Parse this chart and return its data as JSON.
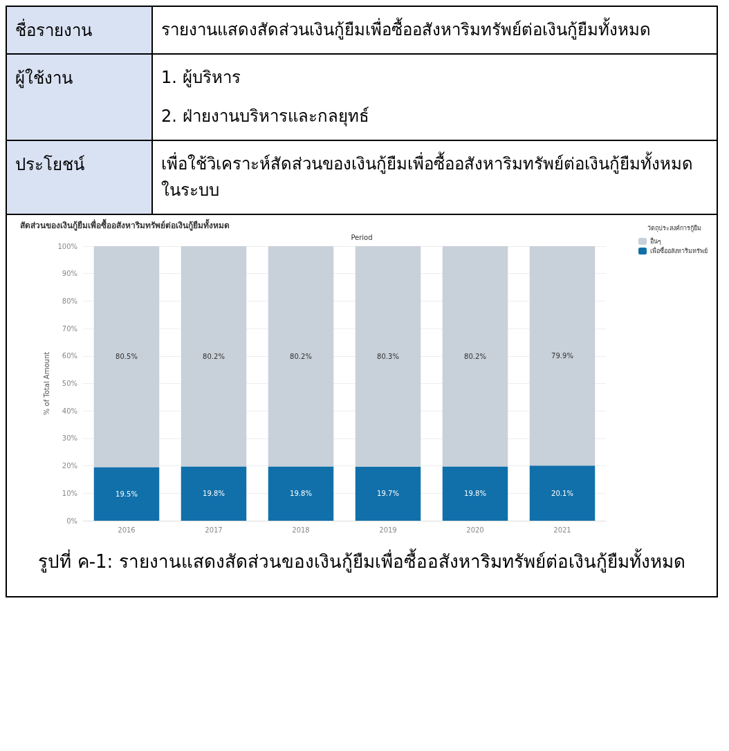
{
  "chart_data": {
    "type": "bar",
    "title": "สัดส่วนของเงินกู้ยืมเพื่อซื้ออสังหาริมทรัพย์ต่อเงินกู้ยืมทั้งหมด",
    "xlabel": "Period",
    "ylabel": "% of Total Amount",
    "legend_title": "วัตถุประสงค์การกู้ยืม",
    "categories": [
      "2016",
      "2017",
      "2018",
      "2019",
      "2020",
      "2021"
    ],
    "stacked": true,
    "series": [
      {
        "name": "เพื่อซื้ออสังหาริมทรัพย์",
        "color": "#1170aa",
        "values": [
          19.5,
          19.8,
          19.8,
          19.7,
          19.8,
          20.1
        ],
        "value_labels": [
          "19.5%",
          "19.8%",
          "19.8%",
          "19.7%",
          "19.8%",
          "20.1%"
        ]
      },
      {
        "name": "อื่นๆ",
        "color": "#c8d0d9",
        "values": [
          80.5,
          80.2,
          80.2,
          80.3,
          80.2,
          79.9
        ],
        "value_labels": [
          "80.5%",
          "80.2%",
          "80.2%",
          "80.3%",
          "80.2%",
          "79.9%"
        ]
      }
    ],
    "ylim": [
      0,
      100
    ],
    "yticks": [
      {
        "value": 0,
        "label": "0%"
      },
      {
        "value": 10,
        "label": "10%"
      },
      {
        "value": 20,
        "label": "20%"
      },
      {
        "value": 30,
        "label": "30%"
      },
      {
        "value": 40,
        "label": "40%"
      },
      {
        "value": 50,
        "label": "50%"
      },
      {
        "value": 60,
        "label": "60%"
      },
      {
        "value": 70,
        "label": "70%"
      },
      {
        "value": 80,
        "label": "80%"
      },
      {
        "value": 90,
        "label": "90%"
      },
      {
        "value": 100,
        "label": "100%"
      }
    ],
    "grid": "y",
    "legend": "top right",
    "annotations": [
      "ชื่อรายงาน",
      "รายงานแสดงสัดส่วนเงินกู้ยืมเพื่อซื้ออสังหาริมทรัพย์ต่อเงินกู้ยืมทั้งหมด",
      "ผู้ใช้งาน",
      "1. ผู้บริหาร",
      "2. ฝ่ายงานบริหารและกลยุทธ์",
      "ประโยชน์",
      "เพื่อใช้วิเคราะห์สัดส่วนของเงินกู้ยืมเพื่อซื้ออสังหาริมทรัพย์ต่อเงินกู้ยืมทั้งหมดในระบบ",
      "รูปที่ ค-1: รายงานแสดงสัดส่วนของเงินกู้ยืมเพื่อซื้ออสังหาริมทรัพย์ต่อเงินกู้ยืมทั้งหมด"
    ]
  }
}
